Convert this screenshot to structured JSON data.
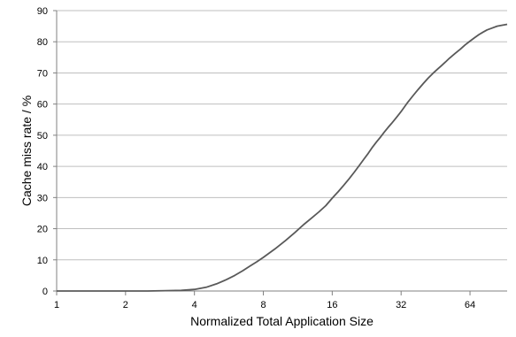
{
  "chart_data": {
    "type": "line",
    "title": "",
    "xlabel": "Normalized Total Application Size",
    "ylabel": "Cache miss rate / %",
    "x_scale": "log2",
    "xlim": [
      1,
      93
    ],
    "ylim": [
      0,
      90
    ],
    "x_ticks": [
      1,
      2,
      4,
      8,
      16,
      32,
      64
    ],
    "x_tick_labels": [
      "1",
      "2",
      "4",
      "8",
      "16",
      "32",
      "64"
    ],
    "y_ticks": [
      0,
      10,
      20,
      30,
      40,
      50,
      60,
      70,
      80,
      90
    ],
    "y_tick_labels": [
      "0",
      "10",
      "20",
      "30",
      "40",
      "50",
      "60",
      "70",
      "80",
      "90"
    ],
    "grid": "horizontal",
    "legend": "none",
    "colors": {
      "line": "#595959",
      "grid": "#bfbfbf",
      "axis": "#808080"
    },
    "series": [
      {
        "x": [
          1,
          2,
          2.5,
          3,
          3.5,
          4,
          4.5,
          5,
          5.5,
          6,
          6.5,
          7,
          7.5,
          8,
          9,
          10,
          11,
          12,
          13,
          14,
          15,
          16,
          17,
          18,
          19,
          20,
          21,
          22,
          23,
          24,
          25,
          26,
          27,
          28,
          29,
          30,
          31,
          32,
          34,
          36,
          38,
          40,
          42,
          44,
          46,
          48,
          50,
          52,
          55,
          58,
          61,
          64,
          67,
          70,
          73,
          76,
          80,
          84,
          88,
          93
        ],
        "y": [
          0,
          0,
          0,
          0.1,
          0.2,
          0.5,
          1.2,
          2.3,
          3.6,
          5,
          6.5,
          8,
          9.4,
          10.8,
          13.5,
          16.2,
          18.8,
          21.3,
          23.4,
          25.4,
          27.4,
          29.8,
          31.9,
          34,
          36.1,
          38.2,
          40.3,
          42.3,
          44.2,
          46.2,
          47.9,
          49.4,
          51,
          52.4,
          53.7,
          55,
          56.3,
          57.6,
          60.3,
          62.6,
          64.7,
          66.6,
          68.3,
          69.8,
          71.1,
          72.3,
          73.5,
          74.7,
          76.2,
          77.6,
          79,
          80.2,
          81.3,
          82.3,
          83.1,
          83.8,
          84.4,
          85,
          85.3,
          85.6
        ]
      }
    ]
  }
}
